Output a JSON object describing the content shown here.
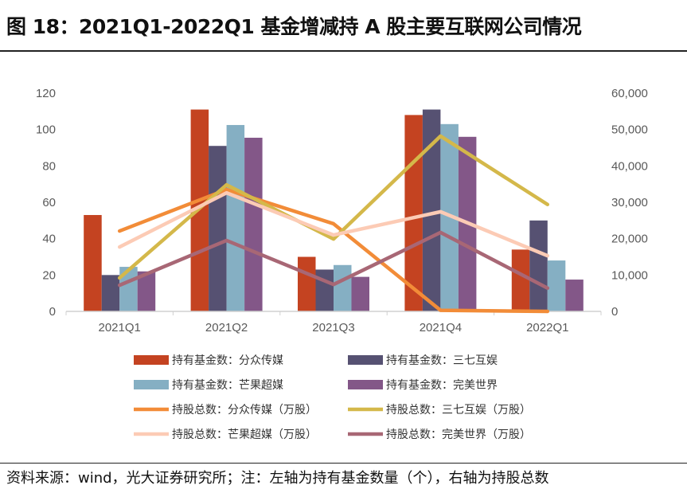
{
  "title": "图 18：2021Q1-2022Q1 基金增减持 A 股主要互联网公司情况",
  "source": "资料来源：wind，光大证券研究所；注：左轴为持有基金数量（个），右轴为持股总数",
  "chart_data": {
    "type": "bar+line",
    "categories": [
      "2021Q1",
      "2021Q2",
      "2021Q3",
      "2021Q4",
      "2022Q1"
    ],
    "y_left": {
      "range": [
        0,
        120
      ],
      "ticks": [
        "0",
        "20",
        "40",
        "60",
        "80",
        "100",
        "120"
      ]
    },
    "y_right": {
      "range": [
        0,
        60000
      ],
      "ticks": [
        "0",
        "10,000",
        "20,000",
        "30,000",
        "40,000",
        "50,000",
        "60,000"
      ]
    },
    "grid": false,
    "legend_position": "bottom",
    "bar_series": [
      {
        "name": "持有基金数：分众传媒",
        "color": "#C44321",
        "values": [
          53,
          111,
          30,
          108,
          34
        ]
      },
      {
        "name": "持有基金数：三七互娱",
        "color": "#565172",
        "values": [
          20,
          91,
          23,
          111,
          50
        ]
      },
      {
        "name": "持有基金数：芒果超媒",
        "color": "#85AFC3",
        "values": [
          24.5,
          102.5,
          25.5,
          103,
          28
        ]
      },
      {
        "name": "持有基金数：完美世界",
        "color": "#835788",
        "values": [
          22,
          95.5,
          19,
          96,
          17.5
        ]
      }
    ],
    "line_series": [
      {
        "name": "持股总数：分众传媒（万股）",
        "color": "#F28C38",
        "values": [
          22100,
          33500,
          24100,
          300,
          0
        ]
      },
      {
        "name": "持股总数：三七互娱（万股）",
        "color": "#D4B84A",
        "values": [
          9200,
          34800,
          19900,
          48200,
          29400
        ]
      },
      {
        "name": "持股总数：芒果超媒（万股）",
        "color": "#FCCBB5",
        "values": [
          17700,
          32600,
          21000,
          27400,
          15300
        ]
      },
      {
        "name": "持股总数：完美世界（万股）",
        "color": "#A86775",
        "values": [
          7200,
          19500,
          7400,
          21700,
          6400
        ]
      }
    ]
  }
}
